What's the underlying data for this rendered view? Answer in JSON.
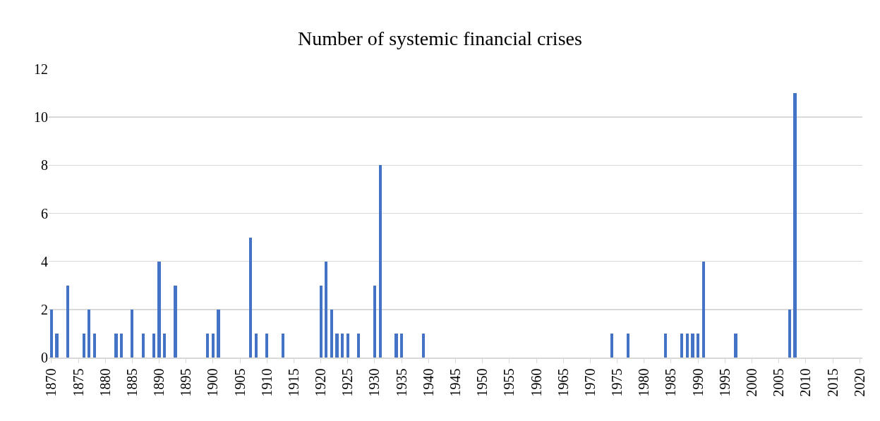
{
  "chart_data": {
    "type": "bar",
    "title": "Number of systemic financial crises",
    "x": [
      1870,
      1871,
      1873,
      1876,
      1877,
      1878,
      1882,
      1883,
      1885,
      1887,
      1889,
      1890,
      1891,
      1893,
      1899,
      1900,
      1901,
      1907,
      1908,
      1910,
      1913,
      1920,
      1921,
      1922,
      1923,
      1924,
      1925,
      1927,
      1930,
      1931,
      1934,
      1935,
      1939,
      1974,
      1977,
      1984,
      1987,
      1988,
      1989,
      1990,
      1991,
      1997,
      2007,
      2008
    ],
    "values": [
      2,
      1,
      3,
      1,
      2,
      1,
      1,
      1,
      2,
      1,
      1,
      4,
      1,
      3,
      1,
      1,
      2,
      5,
      1,
      1,
      1,
      3,
      4,
      2,
      1,
      1,
      1,
      1,
      3,
      8,
      1,
      1,
      1,
      1,
      1,
      1,
      1,
      1,
      1,
      1,
      4,
      1,
      2,
      11
    ],
    "color": "#4472c4",
    "xlim": [
      1869.5,
      2020.5
    ],
    "xticks": [
      1870,
      1875,
      1880,
      1885,
      1890,
      1895,
      1900,
      1905,
      1910,
      1915,
      1920,
      1925,
      1930,
      1935,
      1940,
      1945,
      1950,
      1955,
      1960,
      1965,
      1970,
      1975,
      1980,
      1985,
      1990,
      1995,
      2000,
      2005,
      2010,
      2015,
      2020
    ],
    "ylim": [
      0,
      12
    ],
    "yticks": [
      0,
      2,
      4,
      6,
      8,
      10,
      12
    ],
    "grid": "y",
    "legend": false
  }
}
